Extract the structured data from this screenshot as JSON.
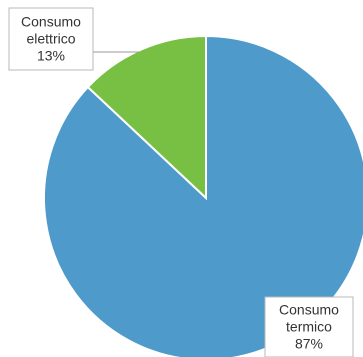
{
  "chart_data": {
    "type": "pie",
    "slices": [
      {
        "label_lines": [
          "Consumo",
          "termico"
        ],
        "value": 87,
        "value_label": "87%",
        "color": "#4e9bcb"
      },
      {
        "label_lines": [
          "Consumo",
          "elettrico"
        ],
        "value": 13,
        "value_label": "13%",
        "color": "#77c043"
      }
    ],
    "start_angle_deg": 0,
    "direction": "clockwise",
    "legend": "none",
    "data_labels": "callout-boxes"
  }
}
